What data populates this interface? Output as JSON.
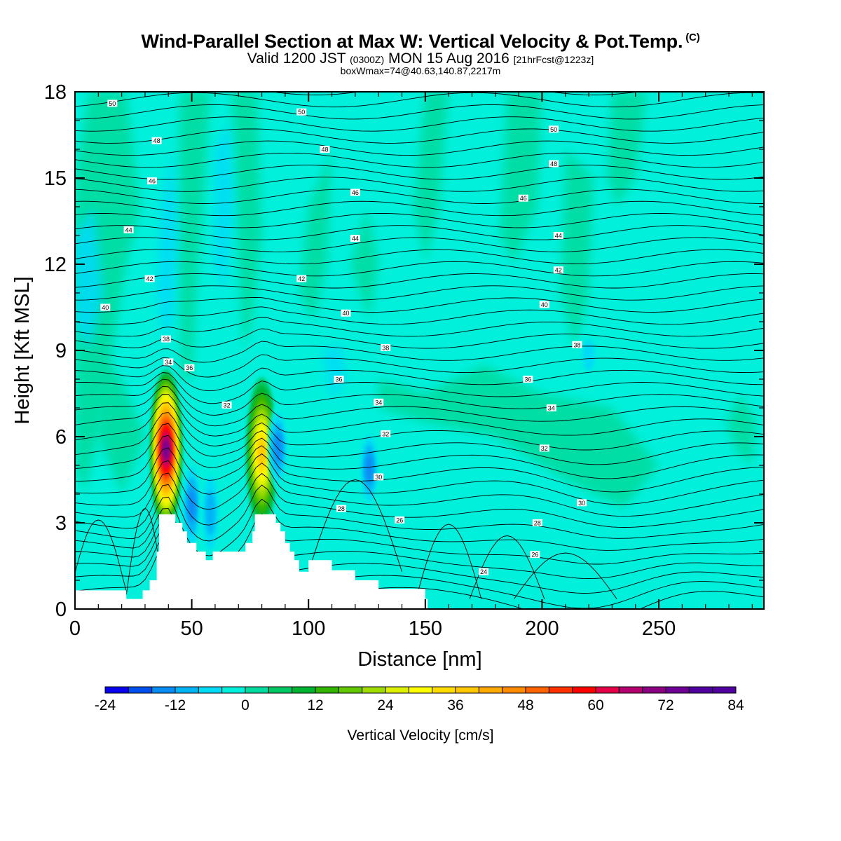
{
  "title": "Wind-Parallel Section at Max W: Vertical Velocity & Pot.Temp.",
  "title_mark": "(C)",
  "subtitle": {
    "valid": "Valid 1200 JST",
    "utc": "(0300Z)",
    "date": "MON 15 Aug 2016",
    "forecast": "[21hrFcst@1223z]"
  },
  "subtitle2": "boxWmax=74@40.63,140.87,2217m",
  "chart_data": {
    "type": "contour-section",
    "xlabel": "Distance [nm]",
    "ylabel": "Height [Kft MSL]",
    "xlim": [
      0,
      295
    ],
    "ylim": [
      0,
      18
    ],
    "x_ticks": [
      0,
      50,
      100,
      150,
      200,
      250
    ],
    "y_ticks": [
      0,
      3,
      6,
      9,
      12,
      15,
      18
    ],
    "fill_field": "Vertical Velocity [cm/s]",
    "colorbar": {
      "label": "Vertical Velocity [cm/s]",
      "min": -24,
      "max": 84,
      "step": 4,
      "tick_labels": [
        "-24",
        "-12",
        "0",
        "12",
        "24",
        "36",
        "48",
        "60",
        "72",
        "84"
      ],
      "colors": [
        "#0a00f0",
        "#0050f0",
        "#0a8cf5",
        "#00b4f5",
        "#00dcf5",
        "#00f0dc",
        "#00dca0",
        "#00c864",
        "#00b432",
        "#32b400",
        "#64c800",
        "#a0dc00",
        "#dcf000",
        "#ffff00",
        "#ffdc00",
        "#ffc800",
        "#ffaa00",
        "#ff8c00",
        "#ff6400",
        "#ff3200",
        "#ff0000",
        "#e6004a",
        "#b4006e",
        "#8c0082",
        "#6e0096",
        "#50009e",
        "#50009e"
      ]
    },
    "max_w_cm_s": 74,
    "updraft_cores": [
      {
        "x": 39,
        "y_bottom": 3.3,
        "y_top": 8.3,
        "w_max": 74
      },
      {
        "x": 80,
        "y_bottom": 3.3,
        "y_top": 8.0,
        "w_max": 36
      }
    ],
    "downdraft_cores": [
      {
        "x": 50,
        "y_bottom": 2.3,
        "y_top": 5.2,
        "w_min": -16
      },
      {
        "x": 58,
        "y_bottom": 2.0,
        "y_top": 5.0,
        "w_min": -12
      },
      {
        "x": 87,
        "y_bottom": 4.5,
        "y_top": 7.0,
        "w_min": -16
      },
      {
        "x": 126,
        "y_bottom": 3.8,
        "y_top": 6.2,
        "w_min": -16
      },
      {
        "x": 220,
        "y_bottom": 8.3,
        "y_top": 9.5,
        "w_min": -8
      }
    ],
    "terrain": {
      "x": [
        0,
        6,
        22,
        26,
        29,
        32,
        35,
        36,
        42,
        43,
        45,
        46,
        48,
        52,
        55,
        56,
        58,
        59,
        62,
        63,
        65,
        66,
        68,
        70,
        72,
        73,
        75,
        76,
        77,
        84,
        86,
        88,
        90,
        92,
        94,
        96,
        98,
        100,
        105,
        110,
        115,
        120,
        125,
        130,
        135,
        140,
        145,
        150,
        151
      ],
      "y": [
        0.65,
        0.65,
        0.35,
        0.35,
        0.65,
        1.0,
        2.0,
        3.3,
        3.3,
        3.0,
        3.0,
        2.7,
        2.3,
        2.0,
        2.0,
        1.7,
        1.7,
        2.0,
        2.0,
        2.0,
        2.0,
        2.0,
        2.0,
        2.0,
        2.0,
        2.3,
        2.3,
        2.7,
        3.3,
        3.3,
        3.0,
        2.7,
        2.3,
        2.0,
        1.7,
        1.3,
        1.3,
        1.7,
        1.7,
        1.35,
        1.35,
        1.0,
        1.0,
        0.7,
        0.7,
        0.7,
        0.7,
        0.35,
        0.35
      ]
    },
    "isentrope_labels": [
      {
        "text": "50",
        "x": 16,
        "y": 17.6
      },
      {
        "text": "50",
        "x": 97,
        "y": 17.3
      },
      {
        "text": "50",
        "x": 205,
        "y": 16.7
      },
      {
        "text": "48",
        "x": 35,
        "y": 16.3
      },
      {
        "text": "48",
        "x": 107,
        "y": 16.0
      },
      {
        "text": "48",
        "x": 205,
        "y": 15.5
      },
      {
        "text": "46",
        "x": 33,
        "y": 14.9
      },
      {
        "text": "46",
        "x": 120,
        "y": 14.5
      },
      {
        "text": "46",
        "x": 192,
        "y": 14.3
      },
      {
        "text": "44",
        "x": 23,
        "y": 13.2
      },
      {
        "text": "44",
        "x": 120,
        "y": 12.9
      },
      {
        "text": "44",
        "x": 207,
        "y": 13.0
      },
      {
        "text": "42",
        "x": 32,
        "y": 11.5
      },
      {
        "text": "42",
        "x": 97,
        "y": 11.5
      },
      {
        "text": "42",
        "x": 207,
        "y": 11.8
      },
      {
        "text": "40",
        "x": 13,
        "y": 10.5
      },
      {
        "text": "40",
        "x": 116,
        "y": 10.3
      },
      {
        "text": "40",
        "x": 201,
        "y": 10.6
      },
      {
        "text": "38",
        "x": 39,
        "y": 9.4
      },
      {
        "text": "38",
        "x": 133,
        "y": 9.1
      },
      {
        "text": "38",
        "x": 215,
        "y": 9.2
      },
      {
        "text": "36",
        "x": 49,
        "y": 8.4
      },
      {
        "text": "36",
        "x": 113,
        "y": 8.0
      },
      {
        "text": "36",
        "x": 194,
        "y": 8.0
      },
      {
        "text": "34",
        "x": 40,
        "y": 8.6
      },
      {
        "text": "34",
        "x": 130,
        "y": 7.2
      },
      {
        "text": "34",
        "x": 204,
        "y": 7.0
      },
      {
        "text": "32",
        "x": 65,
        "y": 7.1
      },
      {
        "text": "32",
        "x": 133,
        "y": 6.1
      },
      {
        "text": "32",
        "x": 201,
        "y": 5.6
      },
      {
        "text": "30",
        "x": 130,
        "y": 4.6
      },
      {
        "text": "30",
        "x": 217,
        "y": 3.7
      },
      {
        "text": "28",
        "x": 114,
        "y": 3.5
      },
      {
        "text": "28",
        "x": 198,
        "y": 3.0
      },
      {
        "text": "26",
        "x": 139,
        "y": 3.1
      },
      {
        "text": "26",
        "x": 197,
        "y": 1.9
      },
      {
        "text": "24",
        "x": 175,
        "y": 1.3
      }
    ]
  },
  "colors": {
    "background_fill": "#00f0dc",
    "axis": "#000000",
    "contour_line": "#000000",
    "terrain": "#ffffff"
  }
}
